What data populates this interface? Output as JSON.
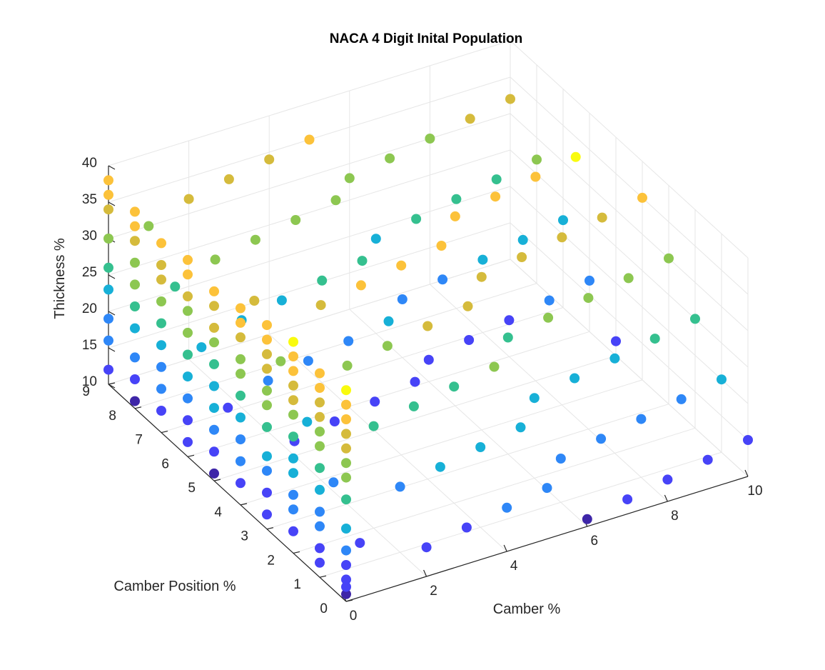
{
  "chart_data": {
    "type": "scatter",
    "title": "NACA 4 Digit Inital Population",
    "xlabel": "Camber %",
    "ylabel": "Camber Position %",
    "zlabel": "Thickness %",
    "xlim": [
      0,
      10
    ],
    "ylim": [
      0,
      9
    ],
    "zlim": [
      10,
      40
    ],
    "x_ticks": [
      "0",
      "2",
      "4",
      "6",
      "8",
      "10"
    ],
    "y_ticks": [
      "0",
      "1",
      "2",
      "3",
      "4",
      "5",
      "6",
      "7",
      "8",
      "9"
    ],
    "z_ticks": [
      "10",
      "15",
      "20",
      "25",
      "30",
      "35",
      "40"
    ],
    "grid": true,
    "colormap": "parula (color mapped to thickness)",
    "colors": [
      "#3e26a8",
      "#4743f7",
      "#2e87f7",
      "#17b0d7",
      "#35c08f",
      "#8dc751",
      "#d5bb3c",
      "#fcc23a",
      "#f9fb0e"
    ],
    "series": [
      {
        "points": [
          [
            0,
            0,
            11
          ],
          [
            0,
            0,
            12
          ],
          [
            0,
            0,
            13
          ],
          [
            0,
            0,
            15
          ],
          [
            0,
            0,
            17
          ],
          [
            0,
            0,
            20
          ],
          [
            0,
            0,
            24
          ],
          [
            0,
            0,
            27
          ],
          [
            0,
            0,
            29
          ],
          [
            0,
            0,
            31
          ],
          [
            0,
            0,
            33
          ],
          [
            0,
            0,
            35
          ],
          [
            0,
            0,
            37
          ],
          [
            0,
            0,
            39
          ],
          [
            0,
            1,
            12
          ],
          [
            0,
            1,
            14
          ],
          [
            0,
            1,
            17
          ],
          [
            0,
            1,
            19
          ],
          [
            0,
            1,
            22
          ],
          [
            0,
            1,
            25
          ],
          [
            0,
            1,
            28
          ],
          [
            0,
            1,
            30
          ],
          [
            0,
            1,
            32
          ],
          [
            0,
            1,
            34
          ],
          [
            0,
            1,
            36
          ],
          [
            0,
            1,
            38
          ],
          [
            0,
            2,
            13
          ],
          [
            0,
            2,
            16
          ],
          [
            0,
            2,
            18
          ],
          [
            0,
            2,
            21
          ],
          [
            0,
            2,
            23
          ],
          [
            0,
            2,
            26
          ],
          [
            0,
            2,
            29
          ],
          [
            0,
            2,
            31
          ],
          [
            0,
            2,
            33
          ],
          [
            0,
            2,
            35
          ],
          [
            0,
            2,
            37
          ],
          [
            0,
            2,
            39
          ],
          [
            0,
            3,
            12
          ],
          [
            0,
            3,
            15
          ],
          [
            0,
            3,
            18
          ],
          [
            0,
            3,
            20
          ],
          [
            0,
            3,
            24
          ],
          [
            0,
            3,
            27
          ],
          [
            0,
            3,
            29
          ],
          [
            0,
            3,
            32
          ],
          [
            0,
            3,
            34
          ],
          [
            0,
            3,
            36
          ],
          [
            0,
            3,
            38
          ],
          [
            0,
            4,
            13
          ],
          [
            0,
            4,
            16
          ],
          [
            0,
            4,
            19
          ],
          [
            0,
            4,
            22
          ],
          [
            0,
            4,
            25
          ],
          [
            0,
            4,
            28
          ],
          [
            0,
            4,
            30
          ],
          [
            0,
            4,
            33
          ],
          [
            0,
            4,
            35
          ],
          [
            0,
            4,
            37
          ],
          [
            0,
            5,
            11
          ],
          [
            0,
            5,
            14
          ],
          [
            0,
            5,
            17
          ],
          [
            0,
            5,
            20
          ],
          [
            0,
            5,
            23
          ],
          [
            0,
            5,
            26
          ],
          [
            0,
            5,
            29
          ],
          [
            0,
            5,
            31
          ],
          [
            0,
            5,
            34
          ],
          [
            0,
            5,
            36
          ],
          [
            0,
            6,
            12
          ],
          [
            0,
            6,
            15
          ],
          [
            0,
            6,
            18
          ],
          [
            0,
            6,
            21
          ],
          [
            0,
            6,
            24
          ],
          [
            0,
            6,
            27
          ],
          [
            0,
            6,
            30
          ],
          [
            0,
            6,
            32
          ],
          [
            0,
            6,
            35
          ],
          [
            0,
            6,
            37
          ],
          [
            0,
            7,
            13
          ],
          [
            0,
            7,
            16
          ],
          [
            0,
            7,
            19
          ],
          [
            0,
            7,
            22
          ],
          [
            0,
            7,
            25
          ],
          [
            0,
            7,
            28
          ],
          [
            0,
            7,
            31
          ],
          [
            0,
            7,
            33
          ],
          [
            0,
            7,
            36
          ],
          [
            0,
            8,
            11
          ],
          [
            0,
            8,
            14
          ],
          [
            0,
            8,
            17
          ],
          [
            0,
            8,
            21
          ],
          [
            0,
            8,
            24
          ],
          [
            0,
            8,
            27
          ],
          [
            0,
            8,
            30
          ],
          [
            0,
            8,
            33
          ],
          [
            0,
            8,
            35
          ],
          [
            0,
            8,
            37
          ],
          [
            0,
            9,
            12
          ],
          [
            0,
            9,
            16
          ],
          [
            0,
            9,
            19
          ],
          [
            0,
            9,
            23
          ],
          [
            0,
            9,
            26
          ],
          [
            0,
            9,
            30
          ],
          [
            0,
            9,
            34
          ],
          [
            0,
            9,
            36
          ],
          [
            0,
            9,
            38
          ],
          [
            1,
            1,
            13
          ],
          [
            1,
            2,
            18
          ],
          [
            1,
            3,
            23
          ],
          [
            1,
            4,
            28
          ],
          [
            1,
            5,
            33
          ],
          [
            1,
            6,
            15
          ],
          [
            1,
            7,
            20
          ],
          [
            1,
            8,
            25
          ],
          [
            1,
            9,
            30
          ],
          [
            2,
            0,
            14
          ],
          [
            2,
            1,
            19
          ],
          [
            2,
            2,
            24
          ],
          [
            2,
            3,
            29
          ],
          [
            2,
            4,
            34
          ],
          [
            2,
            5,
            12
          ],
          [
            2,
            6,
            17
          ],
          [
            2,
            7,
            22
          ],
          [
            2,
            8,
            27
          ],
          [
            2,
            9,
            32
          ],
          [
            3,
            0,
            15
          ],
          [
            3,
            1,
            20
          ],
          [
            3,
            2,
            25
          ],
          [
            3,
            3,
            30
          ],
          [
            3,
            4,
            35
          ],
          [
            3,
            5,
            13
          ],
          [
            3,
            6,
            18
          ],
          [
            3,
            7,
            23
          ],
          [
            3,
            8,
            28
          ],
          [
            3,
            9,
            33
          ],
          [
            4,
            0,
            16
          ],
          [
            4,
            1,
            21
          ],
          [
            4,
            2,
            26
          ],
          [
            4,
            3,
            31
          ],
          [
            4,
            4,
            36
          ],
          [
            4,
            5,
            14
          ],
          [
            4,
            6,
            19
          ],
          [
            4,
            7,
            24
          ],
          [
            4,
            8,
            29
          ],
          [
            4,
            9,
            34
          ],
          [
            5,
            0,
            17
          ],
          [
            5,
            1,
            22
          ],
          [
            5,
            2,
            27
          ],
          [
            5,
            3,
            32
          ],
          [
            5,
            4,
            37
          ],
          [
            5,
            5,
            15
          ],
          [
            5,
            6,
            20
          ],
          [
            5,
            7,
            25
          ],
          [
            5,
            8,
            30
          ],
          [
            5,
            9,
            35
          ],
          [
            6,
            0,
            11
          ],
          [
            6,
            1,
            16
          ],
          [
            6,
            2,
            21
          ],
          [
            6,
            3,
            26
          ],
          [
            6,
            4,
            31
          ],
          [
            6,
            5,
            36
          ],
          [
            6,
            6,
            13
          ],
          [
            6,
            7,
            18
          ],
          [
            6,
            8,
            23
          ],
          [
            6,
            9,
            28
          ],
          [
            7,
            0,
            12
          ],
          [
            7,
            1,
            17
          ],
          [
            7,
            2,
            22
          ],
          [
            7,
            3,
            27
          ],
          [
            7,
            4,
            32
          ],
          [
            7,
            5,
            37
          ],
          [
            7,
            6,
            14
          ],
          [
            7,
            7,
            19
          ],
          [
            7,
            8,
            24
          ],
          [
            7,
            9,
            29
          ],
          [
            8,
            0,
            13
          ],
          [
            8,
            1,
            18
          ],
          [
            8,
            2,
            23
          ],
          [
            8,
            3,
            28
          ],
          [
            8,
            4,
            33
          ],
          [
            8,
            5,
            38
          ],
          [
            8,
            6,
            15
          ],
          [
            8,
            7,
            20
          ],
          [
            8,
            8,
            25
          ],
          [
            8,
            9,
            30
          ],
          [
            9,
            0,
            14
          ],
          [
            9,
            1,
            19
          ],
          [
            9,
            2,
            24
          ],
          [
            9,
            3,
            29
          ],
          [
            9,
            4,
            34
          ],
          [
            9,
            5,
            39
          ],
          [
            9,
            6,
            16
          ],
          [
            9,
            7,
            21
          ],
          [
            9,
            8,
            26
          ],
          [
            9,
            9,
            31
          ],
          [
            10,
            0,
            15
          ],
          [
            10,
            1,
            20
          ],
          [
            10,
            2,
            25
          ],
          [
            10,
            3,
            30
          ],
          [
            10,
            4,
            35
          ],
          [
            10,
            5,
            12
          ],
          [
            10,
            6,
            17
          ],
          [
            10,
            7,
            22
          ],
          [
            10,
            8,
            27
          ],
          [
            10,
            9,
            32
          ]
        ]
      }
    ]
  }
}
